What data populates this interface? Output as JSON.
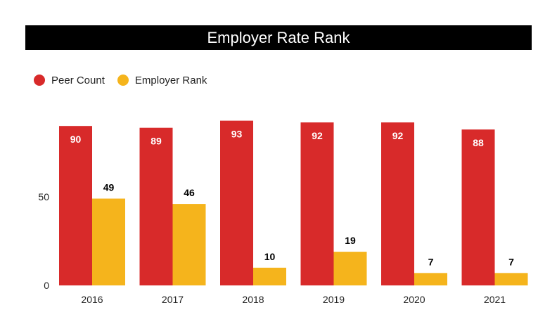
{
  "chart_data": {
    "type": "bar",
    "title": "Employer Rate Rank",
    "categories": [
      "2016",
      "2017",
      "2018",
      "2019",
      "2020",
      "2021"
    ],
    "series": [
      {
        "name": "Peer Count",
        "color": "#d82a2a",
        "values": [
          90,
          89,
          93,
          92,
          92,
          88
        ]
      },
      {
        "name": "Employer Rank",
        "color": "#f5b41c",
        "values": [
          49,
          46,
          10,
          19,
          7,
          7
        ]
      }
    ],
    "yticks": [
      0,
      50
    ],
    "ylim": [
      0,
      100
    ],
    "grid": false,
    "legend": "top-left"
  }
}
